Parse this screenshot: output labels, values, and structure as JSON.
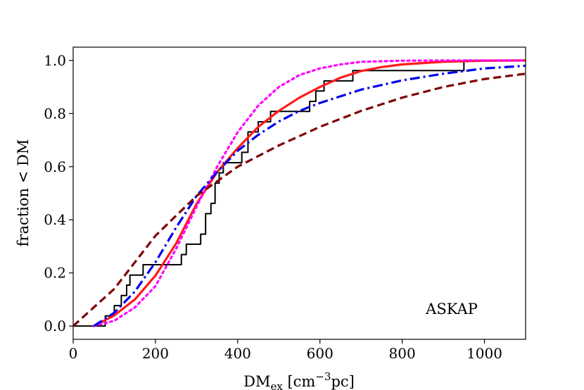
{
  "chart_data": {
    "type": "line",
    "xlabel": {
      "base": "DM",
      "sub": "ex",
      "rest1": " [cm",
      "sup": "−3",
      "rest2": "pc]"
    },
    "ylabel": "fraction < DM",
    "annotation": "ASKAP",
    "xlim": [
      0,
      1100
    ],
    "ylim": [
      -0.05,
      1.05
    ],
    "xticks": [
      0,
      200,
      400,
      600,
      800,
      1000
    ],
    "xtick_labels": [
      "0",
      "200",
      "400",
      "600",
      "800",
      "1000"
    ],
    "yticks": [
      0.0,
      0.2,
      0.4,
      0.6,
      0.8,
      1.0
    ],
    "ytick_labels": [
      "0.0",
      "0.2",
      "0.4",
      "0.6",
      "0.8",
      "1.0"
    ],
    "grid": false,
    "series": [
      {
        "style": "step",
        "color": "#000000",
        "dash": "solid",
        "width": 2,
        "x": [
          0,
          78,
          100,
          117,
          130,
          138,
          160,
          170,
          200,
          263,
          275,
          310,
          322,
          335,
          345,
          355,
          365,
          400,
          410,
          425,
          450,
          465,
          480,
          575,
          580,
          590,
          610,
          680,
          950,
          1100
        ],
        "y": [
          0.0,
          0.038,
          0.077,
          0.115,
          0.154,
          0.192,
          0.192,
          0.231,
          0.231,
          0.269,
          0.308,
          0.346,
          0.423,
          0.462,
          0.538,
          0.577,
          0.615,
          0.615,
          0.654,
          0.731,
          0.769,
          0.769,
          0.808,
          0.846,
          0.846,
          0.885,
          0.923,
          0.962,
          1.0,
          1.0
        ]
      },
      {
        "style": "line",
        "color": "#ff1a1a",
        "dash": "solid",
        "width": 3.2,
        "x": [
          50,
          100,
          150,
          200,
          250,
          300,
          350,
          400,
          450,
          500,
          550,
          600,
          650,
          700,
          750,
          800,
          900,
          1000,
          1100
        ],
        "y": [
          0.0,
          0.04,
          0.1,
          0.19,
          0.31,
          0.46,
          0.58,
          0.67,
          0.75,
          0.81,
          0.86,
          0.9,
          0.935,
          0.96,
          0.975,
          0.985,
          0.995,
          0.999,
          1.0
        ]
      },
      {
        "style": "line",
        "color": "#ff00ff",
        "dash": "dotted",
        "width": 3.2,
        "x": [
          50,
          100,
          150,
          200,
          250,
          300,
          350,
          400,
          450,
          500,
          550,
          600,
          650,
          700,
          800,
          900,
          1000,
          1100
        ],
        "y": [
          0.0,
          0.02,
          0.07,
          0.15,
          0.29,
          0.45,
          0.6,
          0.73,
          0.83,
          0.9,
          0.945,
          0.97,
          0.985,
          0.995,
          0.999,
          1.0,
          1.0,
          1.0
        ]
      },
      {
        "style": "line",
        "color": "#0000ee",
        "dash": "dashdot",
        "width": 3.2,
        "x": [
          50,
          100,
          150,
          200,
          250,
          300,
          350,
          400,
          450,
          500,
          550,
          600,
          700,
          800,
          900,
          1000,
          1100
        ],
        "y": [
          0.0,
          0.05,
          0.13,
          0.24,
          0.37,
          0.49,
          0.58,
          0.66,
          0.72,
          0.77,
          0.81,
          0.84,
          0.89,
          0.925,
          0.95,
          0.97,
          0.98
        ]
      },
      {
        "style": "line",
        "color": "#800000",
        "dash": "dashed",
        "width": 3.2,
        "x": [
          0,
          100,
          200,
          300,
          400,
          500,
          600,
          700,
          800,
          900,
          1000,
          1100
        ],
        "y": [
          0.0,
          0.14,
          0.34,
          0.49,
          0.6,
          0.68,
          0.75,
          0.81,
          0.86,
          0.9,
          0.93,
          0.95
        ]
      }
    ]
  }
}
